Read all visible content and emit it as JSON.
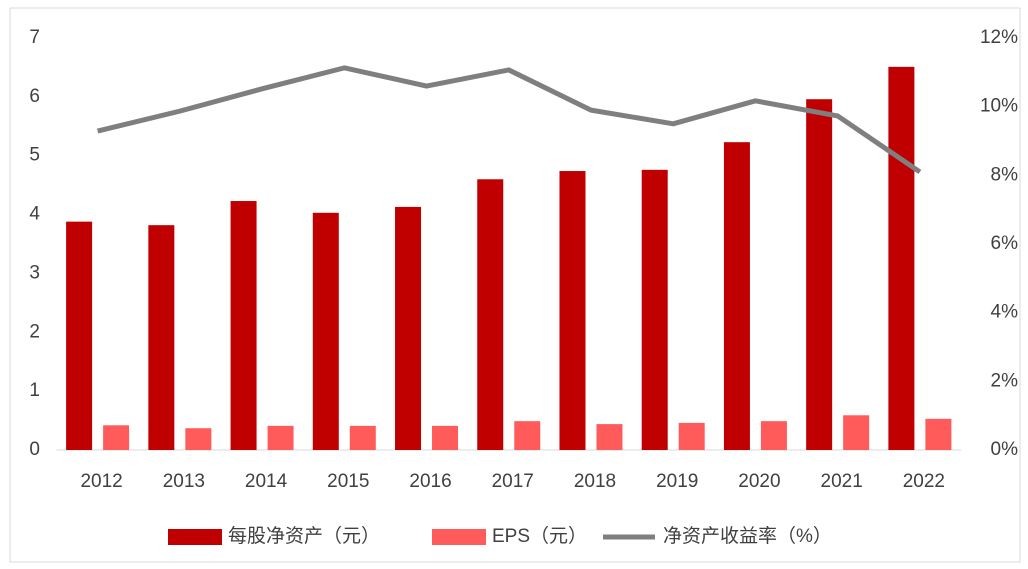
{
  "chart_data": {
    "type": "bar",
    "categories": [
      "2012",
      "2013",
      "2014",
      "2015",
      "2016",
      "2017",
      "2018",
      "2019",
      "2020",
      "2021",
      "2022"
    ],
    "series": [
      {
        "name": "每股净资产（元）",
        "type": "bar",
        "color": "#c00000",
        "values": [
          3.88,
          3.82,
          4.23,
          4.03,
          4.13,
          4.6,
          4.74,
          4.76,
          5.23,
          5.96,
          6.51
        ]
      },
      {
        "name": "EPS（元）",
        "type": "bar",
        "color": "#ff5b5b",
        "values": [
          0.42,
          0.37,
          0.41,
          0.41,
          0.41,
          0.49,
          0.44,
          0.46,
          0.49,
          0.59,
          0.53
        ]
      },
      {
        "name": "净资产收益率（%）",
        "type": "line",
        "axis": "y2",
        "color": "#7f7f7f",
        "values": [
          9.29,
          9.87,
          10.52,
          11.13,
          10.6,
          11.07,
          9.9,
          9.5,
          10.17,
          9.73,
          8.1
        ]
      }
    ],
    "ylim": [
      0,
      7
    ],
    "yticks": [
      0,
      1,
      2,
      3,
      4,
      5,
      6,
      7
    ],
    "y2lim": [
      0,
      12
    ],
    "y2ticks": [
      {
        "value": 0,
        "label": "0%"
      },
      {
        "value": 2,
        "label": "2%"
      },
      {
        "value": 4,
        "label": "4%"
      },
      {
        "value": 6,
        "label": "6%"
      },
      {
        "value": 8,
        "label": "8%"
      },
      {
        "value": 10,
        "label": "10%"
      },
      {
        "value": 12,
        "label": "12%"
      }
    ],
    "grid": false,
    "legend": "bottom"
  }
}
